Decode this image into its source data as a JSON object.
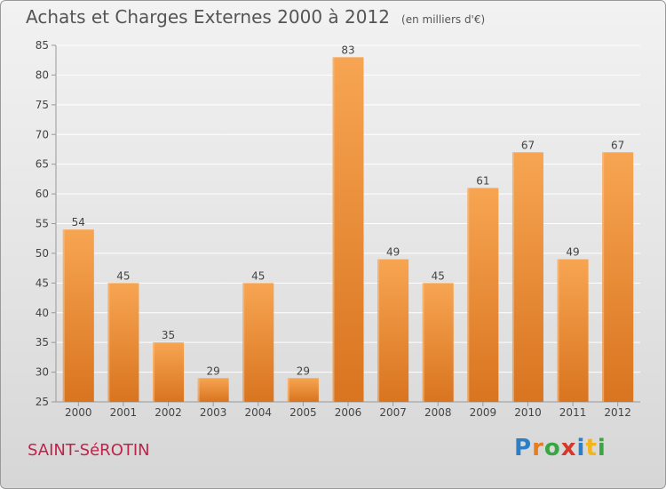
{
  "header": {
    "title": "Achats et Charges Externes 2000 à 2012",
    "subtitle": "(en milliers d'€)"
  },
  "footer": {
    "place": "SAINT-SéROTIN",
    "logo": [
      "P",
      "r",
      "o",
      "x",
      "i",
      "t",
      "i"
    ]
  },
  "colors": {
    "bar": "#f0913a",
    "bar_light": "#f7a85a",
    "bar_dark": "#d9741f",
    "axis": "#999999",
    "grid": "#ffffff",
    "text": "#444444",
    "place": "#c0224a"
  },
  "chart_data": {
    "type": "bar",
    "title": "Achats et Charges Externes 2000 à 2012",
    "subtitle": "(en milliers d'€)",
    "categories": [
      "2000",
      "2001",
      "2002",
      "2003",
      "2004",
      "2005",
      "2006",
      "2007",
      "2008",
      "2009",
      "2010",
      "2011",
      "2012"
    ],
    "values": [
      54,
      45,
      35,
      29,
      45,
      29,
      83,
      49,
      45,
      61,
      67,
      49,
      67
    ],
    "ylim": [
      25,
      85
    ],
    "yticks": [
      25,
      30,
      35,
      40,
      45,
      50,
      55,
      60,
      65,
      70,
      75,
      80,
      85
    ],
    "grid": true,
    "data_labels": true
  }
}
